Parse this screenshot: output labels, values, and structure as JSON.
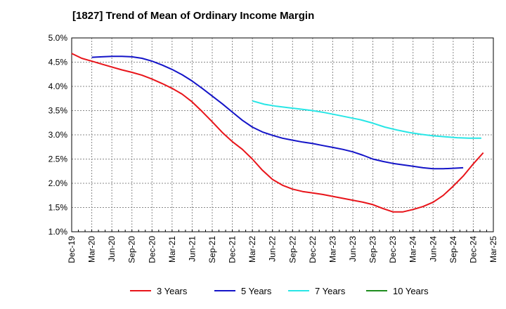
{
  "chart_data": {
    "type": "line",
    "title": "[1827]  Trend of Mean of Ordinary Income Margin",
    "xlabel": "",
    "ylabel": "",
    "x_ticks": [
      "Dec-19",
      "Mar-20",
      "Jun-20",
      "Sep-20",
      "Dec-20",
      "Mar-21",
      "Jun-21",
      "Sep-21",
      "Dec-21",
      "Mar-22",
      "Jun-22",
      "Sep-22",
      "Dec-22",
      "Mar-23",
      "Jun-23",
      "Sep-23",
      "Dec-23",
      "Mar-24",
      "Jun-24",
      "Sep-24",
      "Dec-24",
      "Mar-25"
    ],
    "y_ticks": [
      "1.0%",
      "1.5%",
      "2.0%",
      "2.5%",
      "3.0%",
      "3.5%",
      "4.0%",
      "4.5%",
      "5.0%"
    ],
    "ylim": [
      1.0,
      5.0
    ],
    "grid": true,
    "legend_position": "bottom",
    "series": [
      {
        "name": "3 Years",
        "color": "#e8141a",
        "values": [
          4.68,
          4.58,
          4.52,
          4.46,
          4.4,
          4.34,
          4.29,
          4.23,
          4.15,
          4.06,
          3.96,
          3.84,
          3.68,
          3.48,
          3.27,
          3.05,
          2.86,
          2.7,
          2.5,
          2.27,
          2.08,
          1.96,
          1.88,
          1.83,
          1.8,
          1.77,
          1.73,
          1.69,
          1.65,
          1.61,
          1.56,
          1.48,
          1.41,
          1.41,
          1.46,
          1.52,
          1.61,
          1.75,
          1.94,
          2.15,
          2.4,
          2.63
        ]
      },
      {
        "name": "5 Years",
        "color": "#1414c8",
        "values": [
          null,
          4.6,
          4.61,
          4.62,
          4.62,
          4.61,
          4.58,
          4.52,
          4.44,
          4.35,
          4.24,
          4.11,
          3.96,
          3.8,
          3.64,
          3.47,
          3.3,
          3.16,
          3.06,
          2.99,
          2.93,
          2.89,
          2.85,
          2.82,
          2.78,
          2.74,
          2.7,
          2.65,
          2.58,
          2.5,
          2.45,
          2.41,
          2.38,
          2.35,
          2.32,
          2.3,
          2.3,
          2.31,
          2.32
        ]
      },
      {
        "name": "7 Years",
        "color": "#28e6e6",
        "values": [
          null,
          null,
          null,
          null,
          null,
          null,
          null,
          null,
          null,
          null,
          null,
          null,
          null,
          null,
          null,
          null,
          null,
          null,
          null,
          null,
          null,
          null,
          null,
          null,
          null,
          null,
          null,
          null,
          null,
          null,
          null,
          null,
          null,
          null,
          null,
          null,
          null,
          null,
          null,
          null,
          null,
          null
        ]
      },
      {
        "name": "10 Years",
        "color": "#1e8c1e",
        "values": []
      }
    ],
    "series_7y_points": [
      [
        9,
        3.7
      ],
      [
        10,
        3.63
      ],
      [
        11,
        3.59
      ],
      [
        12,
        3.56
      ],
      [
        13,
        3.53
      ],
      [
        14,
        3.5
      ],
      [
        15,
        3.46
      ],
      [
        16,
        3.41
      ],
      [
        17,
        3.36
      ],
      [
        18,
        3.31
      ],
      [
        19,
        3.24
      ],
      [
        20,
        3.16
      ],
      [
        21,
        3.1
      ],
      [
        22,
        3.05
      ],
      [
        23,
        3.01
      ],
      [
        24,
        2.98
      ],
      [
        25,
        2.96
      ],
      [
        26,
        2.94
      ],
      [
        27,
        2.93
      ],
      [
        28,
        2.93
      ]
    ],
    "series_3y_x": [
      0,
      0.5,
      1,
      1.5,
      2,
      2.5,
      3,
      3.5,
      4,
      4.5,
      5,
      5.5,
      6,
      6.5,
      7,
      7.5,
      8,
      8.5,
      9,
      9.5,
      10,
      10.5,
      11,
      11.5,
      12,
      12.5,
      13,
      13.5,
      14,
      14.5,
      15,
      15.5,
      16,
      16.5,
      17,
      17.5,
      18,
      18.5,
      19,
      19.5,
      20,
      20.5
    ],
    "series_5y_x": [
      0,
      1,
      1.5,
      2,
      2.5,
      3,
      3.5,
      4,
      4.5,
      5,
      5.5,
      6,
      6.5,
      7,
      7.5,
      8,
      8.5,
      9,
      9.5,
      10,
      10.5,
      11,
      11.5,
      12,
      12.5,
      13,
      13.5,
      14,
      14.5,
      15,
      15.5,
      16,
      16.5,
      17,
      17.5,
      18,
      18.5,
      19,
      19.5
    ]
  }
}
